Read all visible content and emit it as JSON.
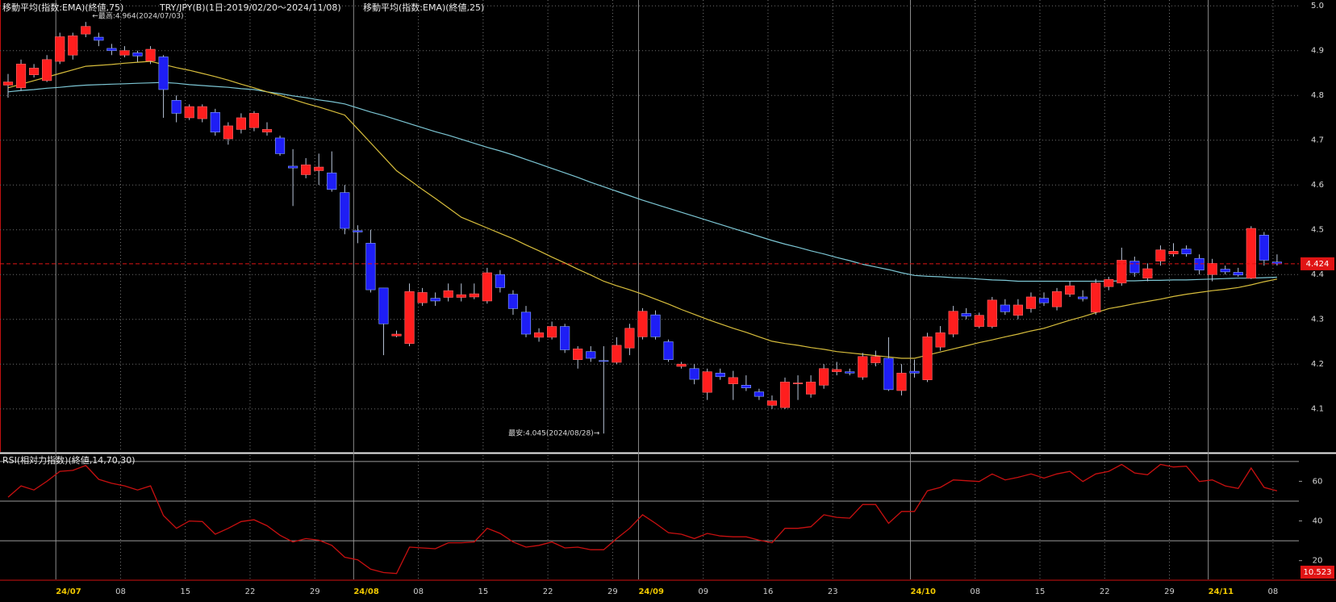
{
  "chart_data": [
    {
      "type": "candlestick",
      "title": "TRY/JPY(B)(1日:2019/02/20～2024/11/08)",
      "categories": [
        null,
        null,
        null,
        null,
        "24/07",
        null,
        null,
        null,
        null,
        "08",
        null,
        null,
        null,
        null,
        "15",
        null,
        null,
        null,
        null,
        "22",
        null,
        null,
        null,
        null,
        "29",
        null,
        null,
        "24/08",
        null,
        null,
        null,
        null,
        "08",
        null,
        null,
        null,
        null,
        "15",
        null,
        null,
        null,
        null,
        "22",
        null,
        null,
        null,
        null,
        "29",
        null,
        "24/09",
        null,
        null,
        null,
        null,
        "09",
        null,
        null,
        null,
        null,
        "16",
        null,
        null,
        null,
        null,
        "23",
        null,
        null,
        null,
        null,
        null,
        "24/10",
        null,
        null,
        null,
        null,
        "08",
        null,
        null,
        null,
        null,
        "15",
        null,
        null,
        null,
        null,
        "22",
        null,
        null,
        null,
        null,
        "29",
        null,
        null,
        "24/11",
        null,
        null,
        null,
        null,
        "08"
      ],
      "open": [
        4.823,
        4.817,
        4.846,
        4.833,
        4.876,
        4.89,
        4.937,
        4.93,
        4.905,
        4.89,
        4.895,
        4.877,
        4.886,
        4.789,
        4.75,
        4.748,
        4.762,
        4.703,
        4.724,
        4.728,
        4.718,
        4.705,
        4.642,
        4.623,
        4.632,
        4.627,
        4.583,
        4.498,
        4.47,
        4.37,
        4.263,
        4.246,
        4.337,
        4.347,
        4.349,
        4.349,
        4.35,
        4.341,
        4.4,
        4.356,
        4.316,
        4.26,
        4.26,
        4.284,
        4.21,
        4.228,
        4.208,
        4.204,
        4.236,
        4.261,
        4.31,
        4.25,
        4.195,
        4.19,
        4.137,
        4.18,
        4.156,
        4.153,
        4.138,
        4.108,
        4.103,
        4.156,
        4.133,
        4.153,
        4.183,
        4.183,
        4.171,
        4.203,
        4.213,
        4.141,
        4.184,
        4.165,
        4.238,
        4.267,
        4.313,
        4.284,
        4.284,
        4.332,
        4.309,
        4.324,
        4.347,
        4.328,
        4.356,
        4.35,
        4.316,
        4.373,
        4.381,
        4.43,
        4.392,
        4.43,
        4.446,
        4.457,
        4.436,
        4.4,
        4.412,
        4.405,
        4.392,
        4.488,
        4.428
      ],
      "high": [
        4.848,
        4.88,
        4.87,
        4.89,
        4.94,
        4.94,
        4.964,
        4.94,
        4.915,
        4.91,
        4.9,
        4.91,
        4.89,
        4.8,
        4.78,
        4.78,
        4.77,
        4.74,
        4.76,
        4.765,
        4.74,
        4.71,
        4.68,
        4.66,
        4.67,
        4.675,
        4.6,
        4.51,
        4.5,
        4.37,
        4.275,
        4.38,
        4.37,
        4.36,
        4.38,
        4.38,
        4.38,
        4.415,
        4.41,
        4.365,
        4.33,
        4.28,
        4.295,
        4.29,
        4.24,
        4.24,
        4.24,
        4.26,
        4.29,
        4.325,
        4.32,
        4.255,
        4.205,
        4.2,
        4.19,
        4.19,
        4.185,
        4.175,
        4.145,
        4.13,
        4.17,
        4.175,
        4.175,
        4.2,
        4.205,
        4.19,
        4.225,
        4.23,
        4.26,
        4.2,
        4.21,
        4.27,
        4.285,
        4.33,
        4.325,
        4.315,
        4.35,
        4.345,
        4.345,
        4.36,
        4.36,
        4.37,
        4.385,
        4.365,
        4.39,
        4.395,
        4.46,
        4.44,
        4.425,
        4.465,
        4.47,
        4.465,
        4.445,
        4.435,
        4.42,
        4.415,
        4.508,
        4.495,
        4.445
      ],
      "low": [
        4.795,
        4.81,
        4.84,
        4.83,
        4.87,
        4.88,
        4.93,
        4.91,
        4.89,
        4.885,
        4.875,
        4.87,
        4.75,
        4.74,
        4.745,
        4.74,
        4.71,
        4.69,
        4.715,
        4.72,
        4.71,
        4.665,
        4.553,
        4.615,
        4.6,
        4.585,
        4.49,
        4.47,
        4.36,
        4.22,
        4.26,
        4.24,
        4.33,
        4.33,
        4.34,
        4.34,
        4.345,
        4.335,
        4.36,
        4.31,
        4.26,
        4.25,
        4.255,
        4.225,
        4.19,
        4.205,
        4.045,
        4.2,
        4.22,
        4.255,
        4.255,
        4.205,
        4.19,
        4.155,
        4.12,
        4.165,
        4.12,
        4.14,
        4.12,
        4.1,
        4.1,
        4.12,
        4.125,
        4.145,
        4.175,
        4.175,
        4.165,
        4.195,
        4.14,
        4.13,
        4.17,
        4.16,
        4.23,
        4.26,
        4.3,
        4.28,
        4.28,
        4.31,
        4.3,
        4.315,
        4.33,
        4.32,
        4.35,
        4.34,
        4.31,
        4.365,
        4.375,
        4.395,
        4.385,
        4.42,
        4.44,
        4.44,
        4.4,
        4.385,
        4.4,
        4.395,
        4.39,
        4.42,
        4.42
      ],
      "close": [
        4.83,
        4.87,
        4.861,
        4.88,
        4.931,
        4.933,
        4.954,
        4.923,
        4.9,
        4.9,
        4.888,
        4.903,
        4.813,
        4.76,
        4.775,
        4.775,
        4.718,
        4.732,
        4.75,
        4.76,
        4.724,
        4.67,
        4.638,
        4.645,
        4.64,
        4.59,
        4.503,
        4.495,
        4.366,
        4.29,
        4.267,
        4.362,
        4.36,
        4.341,
        4.364,
        4.355,
        4.357,
        4.404,
        4.371,
        4.324,
        4.267,
        4.27,
        4.284,
        4.232,
        4.234,
        4.213,
        4.206,
        4.242,
        4.28,
        4.318,
        4.261,
        4.21,
        4.2,
        4.166,
        4.183,
        4.172,
        4.17,
        4.147,
        4.128,
        4.118,
        4.16,
        4.158,
        4.16,
        4.19,
        4.188,
        4.18,
        4.217,
        4.217,
        4.143,
        4.18,
        4.18,
        4.261,
        4.27,
        4.318,
        4.307,
        4.309,
        4.343,
        4.317,
        4.332,
        4.35,
        4.337,
        4.362,
        4.375,
        4.346,
        4.381,
        4.389,
        4.432,
        4.404,
        4.413,
        4.455,
        4.452,
        4.446,
        4.41,
        4.425,
        4.406,
        4.399,
        4.503,
        4.432,
        4.424
      ],
      "up_color": "#ff1e1e",
      "down_color": "#1e1ef5",
      "series": [
        {
          "name": "移動平均(指数:EMA)(終値,75)",
          "color": "#7cc6d4",
          "values": [
            4.808,
            4.811,
            4.813,
            4.816,
            4.818,
            4.821,
            4.823,
            4.824,
            4.825,
            4.826,
            4.827,
            4.828,
            4.829,
            4.827,
            4.824,
            4.822,
            4.82,
            4.818,
            4.815,
            4.813,
            4.808,
            4.804,
            4.799,
            4.795,
            4.79,
            4.786,
            4.781,
            4.772,
            4.763,
            4.755,
            4.746,
            4.737,
            4.728,
            4.719,
            4.711,
            4.702,
            4.693,
            4.684,
            4.676,
            4.667,
            4.657,
            4.647,
            4.637,
            4.627,
            4.617,
            4.606,
            4.596,
            4.586,
            4.576,
            4.566,
            4.557,
            4.548,
            4.539,
            4.53,
            4.521,
            4.512,
            4.503,
            4.494,
            4.485,
            4.476,
            4.468,
            4.461,
            4.453,
            4.446,
            4.438,
            4.431,
            4.423,
            4.417,
            4.411,
            4.404,
            4.398,
            4.396,
            4.395,
            4.393,
            4.392,
            4.39,
            4.388,
            4.387,
            4.385,
            4.385,
            4.385,
            4.385,
            4.385,
            4.385,
            4.385,
            4.385,
            4.386,
            4.386,
            4.387,
            4.387,
            4.388,
            4.388,
            4.389,
            4.39,
            4.391,
            4.392,
            4.392,
            4.393,
            4.394
          ]
        },
        {
          "name": "移動平均(指数:EMA)(終値,25)",
          "color": "#d8be3c",
          "values": [
            4.817,
            4.825,
            4.833,
            4.841,
            4.849,
            4.857,
            4.865,
            4.867,
            4.869,
            4.872,
            4.874,
            4.876,
            4.869,
            4.862,
            4.856,
            4.849,
            4.842,
            4.834,
            4.825,
            4.817,
            4.808,
            4.8,
            4.791,
            4.782,
            4.774,
            4.765,
            4.756,
            4.725,
            4.694,
            4.663,
            4.632,
            4.611,
            4.59,
            4.57,
            4.549,
            4.528,
            4.516,
            4.504,
            4.492,
            4.48,
            4.466,
            4.453,
            4.439,
            4.426,
            4.412,
            4.399,
            4.385,
            4.375,
            4.366,
            4.356,
            4.345,
            4.334,
            4.322,
            4.311,
            4.3,
            4.29,
            4.28,
            4.271,
            4.261,
            4.251,
            4.246,
            4.242,
            4.237,
            4.233,
            4.228,
            4.225,
            4.222,
            4.219,
            4.216,
            4.213,
            4.213,
            4.22,
            4.227,
            4.234,
            4.241,
            4.248,
            4.254,
            4.261,
            4.267,
            4.274,
            4.28,
            4.289,
            4.298,
            4.306,
            4.315,
            4.324,
            4.329,
            4.335,
            4.34,
            4.345,
            4.351,
            4.356,
            4.36,
            4.364,
            4.367,
            4.371,
            4.377,
            4.384,
            4.39
          ]
        }
      ],
      "ylim": [
        4.004,
        5.013
      ],
      "yticks": [
        {
          "value": 5,
          "label": "5.0"
        },
        4.9,
        4.8,
        4.7,
        4.6,
        4.5,
        4.4,
        4.3,
        4.2,
        4.1
      ],
      "grid": true,
      "current_price": 4.424,
      "current_price_color": "#e01414",
      "annotations": [
        "←最高:4.964(2024/07/03)",
        "最安:4.045(2024/08/28)→"
      ]
    },
    {
      "type": "line",
      "title": "RSI(相対力指数)(終値,14,70,30)",
      "color": "#c81010",
      "values": [
        52,
        57.7,
        55.6,
        60,
        65,
        65.5,
        68,
        61,
        59,
        57.7,
        55.6,
        57.7,
        42.7,
        36.3,
        40,
        39.7,
        33.3,
        36.3,
        39.7,
        40.6,
        37.6,
        32.8,
        29.4,
        31.1,
        30.3,
        27.7,
        21.7,
        20.4,
        15.7,
        14,
        13.5,
        26.8,
        26.4,
        26,
        29,
        29,
        29.4,
        36.3,
        33.7,
        29.4,
        26.8,
        27.7,
        29.4,
        26.4,
        26.8,
        25.5,
        25.5,
        31.1,
        36.3,
        43.1,
        38.8,
        34.1,
        33.3,
        31.1,
        33.7,
        32.4,
        32,
        32,
        30.3,
        29,
        36.3,
        36.3,
        37.1,
        43.1,
        41.8,
        41.4,
        48.3,
        48.3,
        38.8,
        44.8,
        44.8,
        55.2,
        56.9,
        60.7,
        60.3,
        59.9,
        63.7,
        60.7,
        62,
        63.7,
        61.6,
        63.7,
        65,
        59.9,
        63.7,
        65,
        68.5,
        64.2,
        63.3,
        68.5,
        67.2,
        67.6,
        59.9,
        60.7,
        57.7,
        56.4,
        66.7,
        56.9,
        55.2
      ],
      "ylim": [
        10.523,
        73.6
      ],
      "yticks": [
        20,
        40,
        60
      ],
      "levels": [
        30,
        50,
        70
      ]
    }
  ]
}
